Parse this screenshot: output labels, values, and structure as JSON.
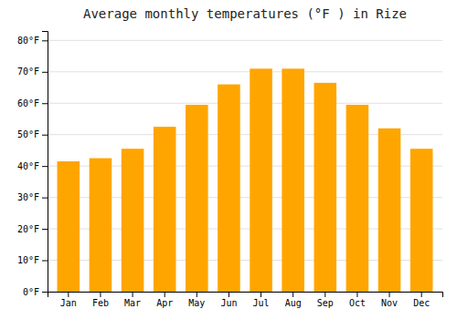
{
  "chart_data": {
    "type": "bar",
    "title": "Average monthly temperatures (°F ) in Rize",
    "categories": [
      "Jan",
      "Feb",
      "Mar",
      "Apr",
      "May",
      "Jun",
      "Jul",
      "Aug",
      "Sep",
      "Oct",
      "Nov",
      "Dec"
    ],
    "values": [
      41.5,
      42.5,
      45.5,
      52.5,
      59.5,
      66,
      71,
      71,
      66.5,
      59.5,
      52,
      45.5
    ],
    "color": "#FFA500",
    "ylim": [
      0,
      83
    ],
    "yticks": [
      {
        "value": 0,
        "label": "0°F"
      },
      {
        "value": 10,
        "label": "10°F"
      },
      {
        "value": 20,
        "label": "20°F"
      },
      {
        "value": 30,
        "label": "30°F"
      },
      {
        "value": 40,
        "label": "40°F"
      },
      {
        "value": 50,
        "label": "50°F"
      },
      {
        "value": 60,
        "label": "60°F"
      },
      {
        "value": 70,
        "label": "70°F"
      },
      {
        "value": 80,
        "label": "80°F"
      }
    ],
    "grid": true
  }
}
